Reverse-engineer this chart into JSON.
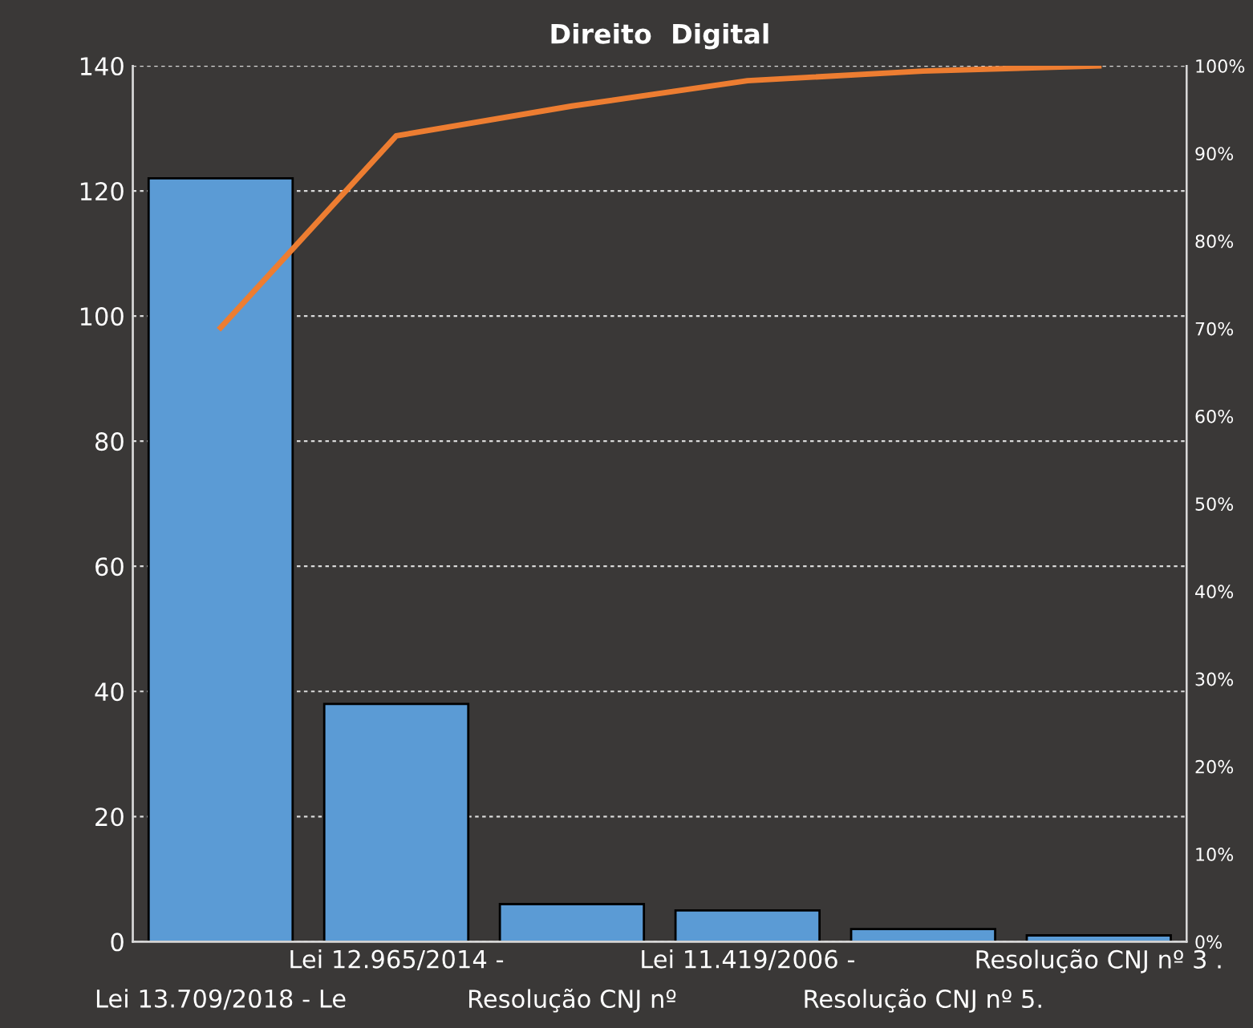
{
  "chart_data": {
    "type": "bar",
    "title": "Direito  Digital",
    "categories": [
      "Lei 13.709/2018 - Le",
      "Lei 12.965/2014 -",
      "Resolução CNJ nº",
      "Lei 11.419/2006 -",
      "Resolução CNJ nº 5.",
      "Resolução CNJ nº 3 ."
    ],
    "series": [
      {
        "color": "#5b9bd5",
        "values": [
          122,
          38,
          6,
          5,
          2,
          1
        ]
      },
      {
        "type": "line",
        "axis": "y2",
        "color": "#ed7d31",
        "values": [
          70.1,
          92.0,
          95.4,
          98.3,
          99.4,
          100
        ]
      }
    ],
    "ylim": [
      0,
      140
    ],
    "yticks": [
      0,
      20,
      40,
      60,
      80,
      100,
      120,
      140
    ],
    "y2lim": [
      0,
      100
    ],
    "y2ticks": [
      {
        "value": 0,
        "label": "0%"
      },
      {
        "value": 10,
        "label": "10%"
      },
      {
        "value": 20,
        "label": "20%"
      },
      {
        "value": 30,
        "label": "30%"
      },
      {
        "value": 40,
        "label": "40%"
      },
      {
        "value": 50,
        "label": "50%"
      },
      {
        "value": 60,
        "label": "60%"
      },
      {
        "value": 70,
        "label": "70%"
      },
      {
        "value": 80,
        "label": "80%"
      },
      {
        "value": 90,
        "label": "90%"
      },
      {
        "value": 100,
        "label": "100%"
      }
    ],
    "grid": "y",
    "line_style": "solid",
    "marker": "none"
  }
}
